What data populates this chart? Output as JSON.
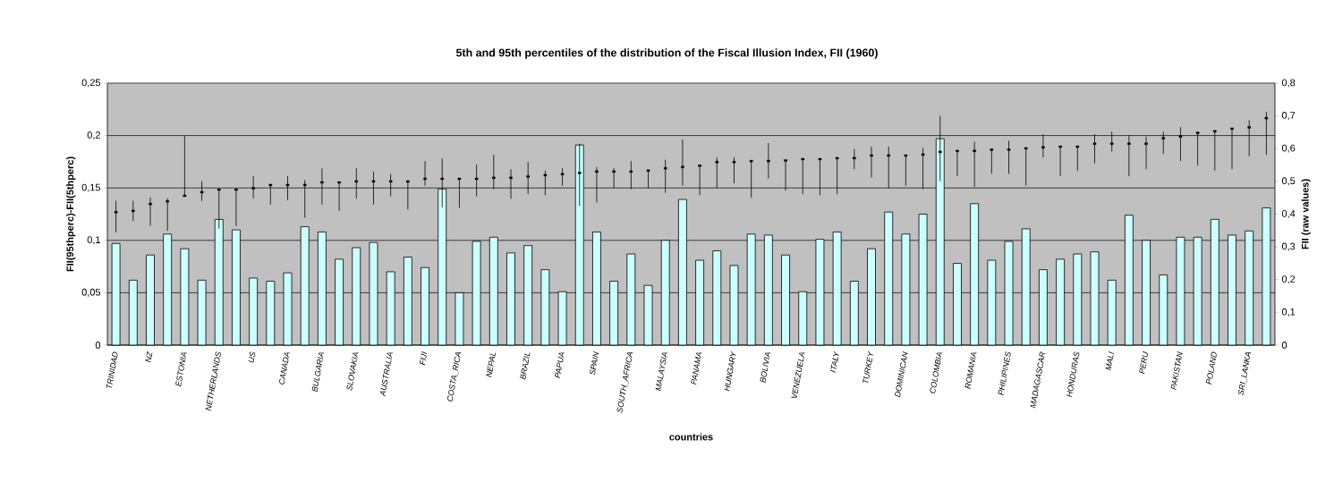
{
  "chart_data": {
    "type": "bar",
    "title": "5th and 95th percentiles of the distribution of the Fiscal Illusion Index, FII (1960)",
    "xlabel": "countries",
    "ylabel": "FII(95thperc)-FII(5thperc)",
    "y2label": "FII (raw values)",
    "categories": [
      "TRINIDAD",
      null,
      "NZ",
      null,
      "ESTONIA",
      null,
      "NETHERLANDS",
      null,
      "US",
      null,
      "CANADA",
      null,
      "BULGARIA",
      null,
      "SLOVAKIA",
      null,
      "AUSTRALIA",
      null,
      "FIJI",
      null,
      "COSTA_RICA",
      null,
      "NEPAL",
      null,
      "BRAZIL",
      null,
      "PAPUA",
      null,
      "SPAIN",
      null,
      "SOUTH_AFRICA",
      null,
      "MALAYSIA",
      null,
      "PANAMA",
      null,
      "HUNGARY",
      null,
      "BOLIVIA",
      null,
      "VENEZUELA",
      null,
      "ITALY",
      null,
      "TURKEY",
      null,
      "DOMINICAN",
      null,
      "COLOMBIA",
      null,
      "ROMANIA",
      null,
      "PHILIPINES",
      null,
      "MADAGASCAR",
      null,
      "HONDURAS",
      null,
      "MALI",
      null,
      "PERU",
      null,
      "PAKISTAN",
      null,
      "POLAND",
      null,
      "SRI_LANKA",
      null
    ],
    "series": [
      {
        "color": "#ccffff",
        "values": [
          0.097,
          0.062,
          0.086,
          0.106,
          0.092,
          0.062,
          0.12,
          0.11,
          0.064,
          0.061,
          0.069,
          0.113,
          0.108,
          0.082,
          0.093,
          0.098,
          0.07,
          0.084,
          0.074,
          0.149,
          0.05,
          0.099,
          0.103,
          0.088,
          0.095,
          0.072,
          0.051,
          0.191,
          0.108,
          0.061,
          0.087,
          0.057,
          0.1,
          0.139,
          0.081,
          0.09,
          0.076,
          0.106,
          0.105,
          0.086,
          0.051,
          0.101,
          0.108,
          0.061,
          0.092,
          0.127,
          0.106,
          0.125,
          0.197,
          0.078,
          0.135,
          0.081,
          0.099,
          0.111,
          0.072,
          0.082,
          0.087,
          0.089,
          0.062,
          0.124,
          0.1,
          0.067,
          0.103,
          0.103,
          0.12,
          0.105,
          0.109,
          0.131
        ]
      },
      {
        "type": "scatter",
        "axis": "y2",
        "color": "#000000",
        "values": [
          0.406,
          0.41,
          0.431,
          0.439,
          0.456,
          0.467,
          0.475,
          0.475,
          0.479,
          0.489,
          0.489,
          0.489,
          0.497,
          0.497,
          0.5,
          0.5,
          0.5,
          0.5,
          0.508,
          0.508,
          0.508,
          0.508,
          0.511,
          0.511,
          0.515,
          0.519,
          0.522,
          0.526,
          0.53,
          0.53,
          0.53,
          0.533,
          0.54,
          0.544,
          0.548,
          0.559,
          0.559,
          0.562,
          0.562,
          0.564,
          0.568,
          0.568,
          0.571,
          0.571,
          0.579,
          0.579,
          0.579,
          0.582,
          0.59,
          0.593,
          0.593,
          0.597,
          0.597,
          0.601,
          0.604,
          0.606,
          0.606,
          0.615,
          0.615,
          0.615,
          0.615,
          0.632,
          0.637,
          0.648,
          0.653,
          0.661,
          0.665,
          0.693
        ],
        "errors": [
          [
            0.344,
            0.441
          ],
          [
            0.379,
            0.441
          ],
          [
            0.364,
            0.451
          ],
          [
            0.349,
            0.448
          ],
          [
            0.456,
            0.639
          ],
          [
            0.44,
            0.501
          ],
          [
            0.356,
            0.475
          ],
          [
            0.364,
            0.475
          ],
          [
            0.448,
            0.516
          ],
          [
            0.429,
            0.489
          ],
          [
            0.443,
            0.516
          ],
          [
            0.389,
            0.504
          ],
          [
            0.429,
            0.54
          ],
          [
            0.41,
            0.497
          ],
          [
            0.447,
            0.54
          ],
          [
            0.429,
            0.53
          ],
          [
            0.454,
            0.523
          ],
          [
            0.414,
            0.5
          ],
          [
            0.487,
            0.562
          ],
          [
            0.421,
            0.57
          ],
          [
            0.419,
            0.508
          ],
          [
            0.454,
            0.551
          ],
          [
            0.476,
            0.581
          ],
          [
            0.447,
            0.537
          ],
          [
            0.461,
            0.559
          ],
          [
            0.458,
            0.533
          ],
          [
            0.487,
            0.54
          ],
          [
            0.425,
            0.615
          ],
          [
            0.436,
            0.544
          ],
          [
            0.48,
            0.54
          ],
          [
            0.476,
            0.562
          ],
          [
            0.48,
            0.533
          ],
          [
            0.465,
            0.566
          ],
          [
            0.487,
            0.628
          ],
          [
            0.458,
            0.548
          ],
          [
            0.48,
            0.573
          ],
          [
            0.494,
            0.573
          ],
          [
            0.45,
            0.562
          ],
          [
            0.509,
            0.617
          ],
          [
            0.472,
            0.564
          ],
          [
            0.461,
            0.568
          ],
          [
            0.458,
            0.568
          ],
          [
            0.461,
            0.571
          ],
          [
            0.537,
            0.599
          ],
          [
            0.512,
            0.606
          ],
          [
            0.48,
            0.606
          ],
          [
            0.487,
            0.579
          ],
          [
            0.476,
            0.602
          ],
          [
            0.501,
            0.7
          ],
          [
            0.516,
            0.593
          ],
          [
            0.483,
            0.621
          ],
          [
            0.523,
            0.597
          ],
          [
            0.523,
            0.624
          ],
          [
            0.487,
            0.601
          ],
          [
            0.573,
            0.644
          ],
          [
            0.516,
            0.606
          ],
          [
            0.533,
            0.606
          ],
          [
            0.555,
            0.644
          ],
          [
            0.591,
            0.652
          ],
          [
            0.516,
            0.641
          ],
          [
            0.537,
            0.637
          ],
          [
            0.584,
            0.652
          ],
          [
            0.562,
            0.666
          ],
          [
            0.548,
            0.652
          ],
          [
            0.533,
            0.657
          ],
          [
            0.537,
            0.662
          ],
          [
            0.577,
            0.687
          ],
          [
            0.581,
            0.712
          ]
        ]
      }
    ],
    "ylim": [
      0,
      0.25
    ],
    "yticks": [
      0,
      {
        "value": 0.05,
        "label": "0,05"
      },
      {
        "value": 0.1,
        "label": "0,1"
      },
      {
        "value": 0.15,
        "label": "0,15"
      },
      {
        "value": 0.2,
        "label": "0,2"
      },
      {
        "value": 0.25,
        "label": "0,25"
      }
    ],
    "y2lim": [
      0,
      0.8
    ],
    "y2ticks": [
      0,
      {
        "value": 0.1,
        "label": "0,1"
      },
      {
        "value": 0.2,
        "label": "0,2"
      },
      {
        "value": 0.3,
        "label": "0,3"
      },
      {
        "value": 0.4,
        "label": "0,4"
      },
      {
        "value": 0.5,
        "label": "0,5"
      },
      {
        "value": 0.6,
        "label": "0,6"
      },
      {
        "value": 0.7,
        "label": "0,7"
      },
      {
        "value": 0.8,
        "label": "0,8"
      }
    ],
    "grid": "y",
    "marker": "square"
  }
}
